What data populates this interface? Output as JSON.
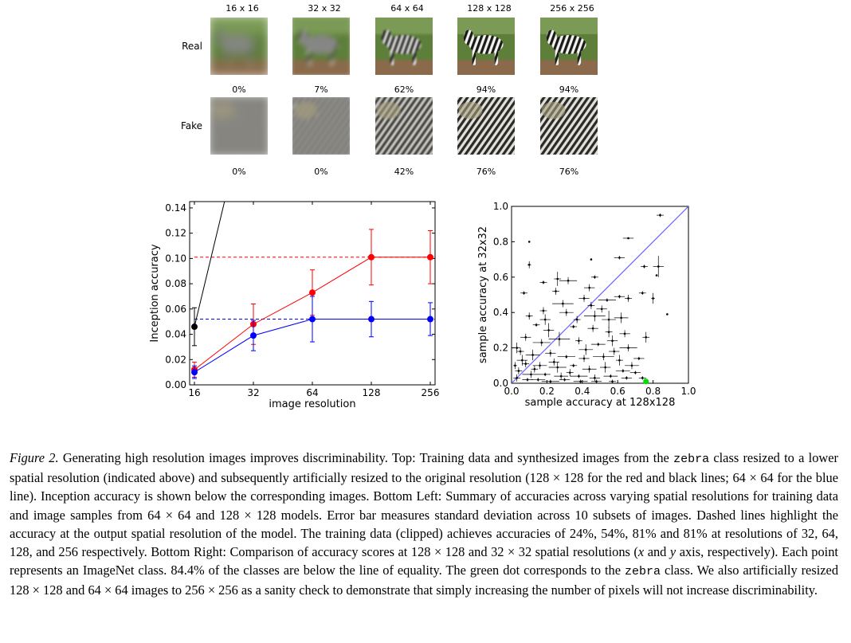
{
  "grid": {
    "resolutions": [
      "16 x 16",
      "32 x 32",
      "64 x 64",
      "128 x 128",
      "256 x 256"
    ],
    "rows": [
      {
        "label": "Real",
        "accuracies": [
          "0%",
          "7%",
          "62%",
          "94%",
          "94%"
        ],
        "blur_levels": [
          6,
          3,
          1.2,
          0.3,
          0.3
        ],
        "kind": "real"
      },
      {
        "label": "Fake",
        "accuracies": [
          "0%",
          "0%",
          "42%",
          "76%",
          "76%"
        ],
        "blur_levels": [
          5,
          2.4,
          1,
          0.3,
          0.3
        ],
        "kind": "fake"
      }
    ]
  },
  "chart_data": [
    {
      "type": "line",
      "title": "",
      "xlabel": "image resolution",
      "ylabel": "Inception accuracy",
      "categories": [
        "16",
        "32",
        "64",
        "128",
        "256"
      ],
      "ylim": [
        0,
        0.145
      ],
      "yticks": [
        "0.00",
        "0.02",
        "0.04",
        "0.06",
        "0.08",
        "0.10",
        "0.12",
        "0.14"
      ],
      "grid": false,
      "series": [
        {
          "color": "#ff0000",
          "values": [
            0.012,
            0.048,
            0.073,
            0.101,
            0.101
          ],
          "errors": [
            0.006,
            0.016,
            0.018,
            0.022,
            0.021
          ]
        },
        {
          "color": "#0000ff",
          "values": [
            0.01,
            0.039,
            0.052,
            0.052,
            0.052
          ],
          "errors": [
            0.005,
            0.012,
            0.018,
            0.014,
            0.013
          ]
        },
        {
          "color": "#000000",
          "values": [
            0.046,
            0.24,
            null,
            null,
            null
          ],
          "errors": [
            0.015,
            0,
            0,
            0,
            0
          ]
        }
      ],
      "dashed_levels": [
        {
          "color": "#ff0000",
          "value": 0.101
        },
        {
          "color": "#0000ff",
          "value": 0.052
        }
      ]
    },
    {
      "type": "scatter",
      "title": "",
      "xlabel": "sample accuracy at 128x128",
      "ylabel": "sample accuracy at 32x32",
      "xlim": [
        0,
        1.0
      ],
      "ylim": [
        0,
        1.0
      ],
      "xticks": [
        "0.0",
        "0.2",
        "0.4",
        "0.6",
        "0.8",
        "1.0"
      ],
      "yticks": [
        "0.0",
        "0.2",
        "0.4",
        "0.6",
        "0.8",
        "1.0"
      ],
      "grid": false,
      "identity_line_color": "#6666ff",
      "highlight_point": {
        "x": 0.76,
        "y": 0.01,
        "color": "#00dd00"
      },
      "points": [
        [
          0.84,
          0.95,
          0.02,
          0.01
        ],
        [
          0.1,
          0.8,
          0,
          0
        ],
        [
          0.66,
          0.82,
          0.03,
          0
        ],
        [
          0.1,
          0.67,
          0.01,
          0.02
        ],
        [
          0.61,
          0.71,
          0.03,
          0.01
        ],
        [
          0.75,
          0.66,
          0.02,
          0.01
        ],
        [
          0.83,
          0.66,
          0.03,
          0.06
        ],
        [
          0.45,
          0.7,
          0,
          0
        ],
        [
          0.18,
          0.57,
          0.02,
          0.01
        ],
        [
          0.32,
          0.58,
          0.05,
          0.02
        ],
        [
          0.47,
          0.6,
          0.02,
          0.01
        ],
        [
          0.26,
          0.59,
          0.02,
          0.04
        ],
        [
          0.82,
          0.61,
          0,
          0
        ],
        [
          0.07,
          0.51,
          0.02,
          0.01
        ],
        [
          0.44,
          0.54,
          0.03,
          0.02
        ],
        [
          0.29,
          0.45,
          0.06,
          0.02
        ],
        [
          0.41,
          0.48,
          0.03,
          0.02
        ],
        [
          0.54,
          0.47,
          0.05,
          0.01
        ],
        [
          0.61,
          0.49,
          0.03,
          0.01
        ],
        [
          0.66,
          0.48,
          0.02,
          0.02
        ],
        [
          0.74,
          0.51,
          0.02,
          0.01
        ],
        [
          0.8,
          0.48,
          0.01,
          0.03
        ],
        [
          0.88,
          0.39,
          0,
          0
        ],
        [
          0.18,
          0.41,
          0.02,
          0.02
        ],
        [
          0.31,
          0.4,
          0.04,
          0.02
        ],
        [
          0.47,
          0.38,
          0.06,
          0.03
        ],
        [
          0.55,
          0.36,
          0.04,
          0.05
        ],
        [
          0.62,
          0.37,
          0.04,
          0.03
        ],
        [
          0.14,
          0.33,
          0.02,
          0.01
        ],
        [
          0.21,
          0.3,
          0.03,
          0.04
        ],
        [
          0.35,
          0.32,
          0.02,
          0.01
        ],
        [
          0.46,
          0.31,
          0.03,
          0.02
        ],
        [
          0.55,
          0.29,
          0.02,
          0.03
        ],
        [
          0.64,
          0.28,
          0.03,
          0.02
        ],
        [
          0.76,
          0.26,
          0.02,
          0.03
        ],
        [
          0.08,
          0.26,
          0.03,
          0.02
        ],
        [
          0.17,
          0.23,
          0.05,
          0.02
        ],
        [
          0.27,
          0.25,
          0.06,
          0.04
        ],
        [
          0.38,
          0.24,
          0.02,
          0.02
        ],
        [
          0.49,
          0.22,
          0.04,
          0.01
        ],
        [
          0.57,
          0.24,
          0.03,
          0.03
        ],
        [
          0.66,
          0.2,
          0.05,
          0.02
        ],
        [
          0.05,
          0.18,
          0.02,
          0.02
        ],
        [
          0.12,
          0.16,
          0.04,
          0.03
        ],
        [
          0.22,
          0.17,
          0.03,
          0.02
        ],
        [
          0.31,
          0.15,
          0.05,
          0.01
        ],
        [
          0.41,
          0.14,
          0.03,
          0.02
        ],
        [
          0.52,
          0.15,
          0.06,
          0.02
        ],
        [
          0.61,
          0.13,
          0.02,
          0.03
        ],
        [
          0.72,
          0.14,
          0.03,
          0.01
        ],
        [
          0.08,
          0.11,
          0.02,
          0.02
        ],
        [
          0.16,
          0.1,
          0.04,
          0.02
        ],
        [
          0.26,
          0.09,
          0.05,
          0.03
        ],
        [
          0.35,
          0.1,
          0.02,
          0.01
        ],
        [
          0.44,
          0.08,
          0.04,
          0.02
        ],
        [
          0.53,
          0.09,
          0.03,
          0.03
        ],
        [
          0.63,
          0.07,
          0.04,
          0.01
        ],
        [
          0.7,
          0.06,
          0.03,
          0.01
        ],
        [
          0.04,
          0.07,
          0.02,
          0.02
        ],
        [
          0.11,
          0.05,
          0.05,
          0.02
        ],
        [
          0.19,
          0.05,
          0.03,
          0.01
        ],
        [
          0.28,
          0.04,
          0.04,
          0.02
        ],
        [
          0.38,
          0.04,
          0.05,
          0.01
        ],
        [
          0.47,
          0.03,
          0.03,
          0.02
        ],
        [
          0.56,
          0.04,
          0.04,
          0.01
        ],
        [
          0.65,
          0.03,
          0.03,
          0.01
        ],
        [
          0.74,
          0.03,
          0.02,
          0.01
        ],
        [
          0.03,
          0.03,
          0.02,
          0.02
        ],
        [
          0.09,
          0.02,
          0.03,
          0.01
        ],
        [
          0.15,
          0.02,
          0.04,
          0.01
        ],
        [
          0.22,
          0.01,
          0.05,
          0.01
        ],
        [
          0.3,
          0.02,
          0.03,
          0.01
        ],
        [
          0.39,
          0.01,
          0.04,
          0.01
        ],
        [
          0.48,
          0.01,
          0.03,
          0.01
        ],
        [
          0.57,
          0.01,
          0.02,
          0.01
        ],
        [
          0.13,
          0.08,
          0.02,
          0.02
        ],
        [
          0.24,
          0.12,
          0.03,
          0.02
        ],
        [
          0.33,
          0.06,
          0.02,
          0.02
        ],
        [
          0.42,
          0.19,
          0.04,
          0.03
        ],
        [
          0.58,
          0.18,
          0.03,
          0.02
        ],
        [
          0.68,
          0.1,
          0.04,
          0.02
        ],
        [
          0.06,
          0.13,
          0.03,
          0.03
        ],
        [
          0.19,
          0.36,
          0.03,
          0.03
        ],
        [
          0.37,
          0.36,
          0.02,
          0.02
        ],
        [
          0.51,
          0.42,
          0.03,
          0.02
        ],
        [
          0.25,
          0.52,
          0.02,
          0.02
        ],
        [
          0.02,
          0.1,
          0.01,
          0.02
        ],
        [
          0.03,
          0.2,
          0.02,
          0.03
        ],
        [
          0.1,
          0.38,
          0.02,
          0.02
        ],
        [
          0.45,
          0.44,
          0.02,
          0.02
        ]
      ]
    }
  ],
  "caption": {
    "fig_label": "Figure 2.",
    "segments": [
      {
        "t": " Generating high resolution images improves discriminability. Top: Training data and synthesized images from the "
      },
      {
        "t": "zebra",
        "mono": true
      },
      {
        "t": " class resized to a lower spatial resolution (indicated above) and subsequently artificially resized to the original resolution (128 × 128 for the red and black lines; 64 × 64 for the blue line). Inception accuracy is shown below the corresponding images. Bottom Left: Summary of accuracies across varying spatial resolutions for training data and image samples from 64 × 64 and 128 × 128 models. Error bar measures standard deviation across 10 subsets of images. Dashed lines highlight the accuracy at the output spatial resolution of the model. The training data (clipped) achieves accuracies of 24%, 54%, 81% and 81% at resolutions of 32, 64, 128, and 256 respectively. Bottom Right: Comparison of accuracy scores at 128 × 128 and 32 × 32 spatial resolutions ("
      },
      {
        "t": "x",
        "it": true
      },
      {
        "t": " and "
      },
      {
        "t": "y",
        "it": true
      },
      {
        "t": " axis, respectively). Each point represents an ImageNet class. 84.4% of the classes are below the line of equality. The green dot corresponds to the "
      },
      {
        "t": "zebra",
        "mono": true
      },
      {
        "t": " class. We also artificially resized 128 × 128 and 64 × 64 images to 256 × 256 as a sanity check to demonstrate that simply increasing the number of pixels will not increase discriminability."
      }
    ]
  }
}
